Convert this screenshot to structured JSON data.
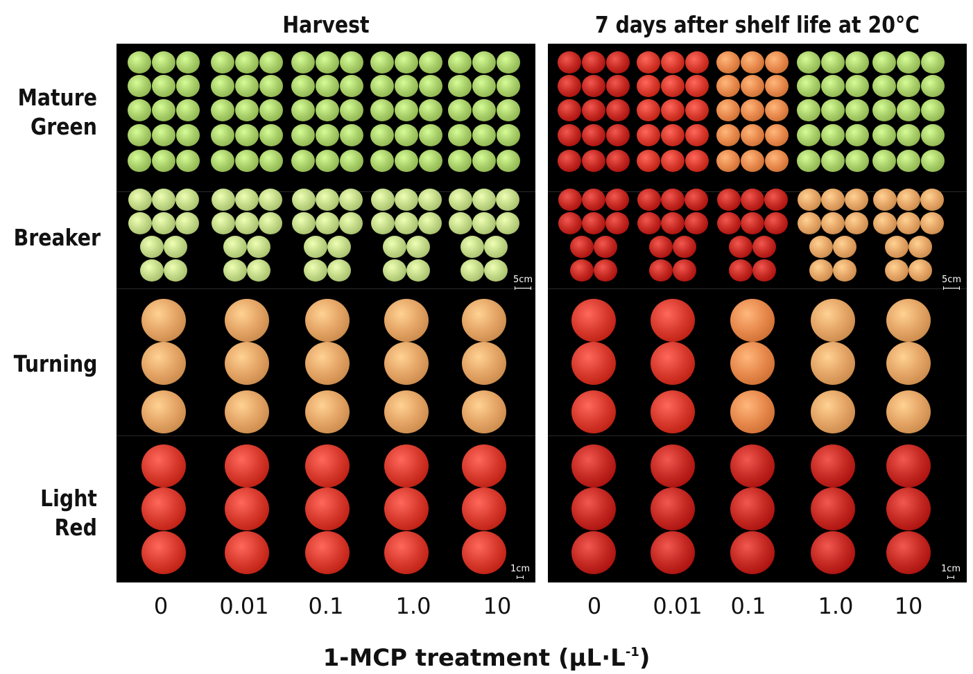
{
  "panels": [
    {
      "title": "Harvest"
    },
    {
      "title": "7 days after shelf life at 20°C"
    }
  ],
  "stages": [
    {
      "lines": [
        "Mature",
        "Green"
      ]
    },
    {
      "lines": [
        "Breaker"
      ]
    },
    {
      "lines": [
        "Turning"
      ]
    },
    {
      "lines": [
        "Light",
        "Red"
      ]
    }
  ],
  "treatments": [
    "0",
    "0.01",
    "0.1",
    "1.0",
    "10"
  ],
  "x_axis": {
    "label": "1-MCP treatment (μL·L",
    "superscript": "-1",
    "close": ")"
  },
  "scale_bars": {
    "breaker": "5cm",
    "light_red": "1cm"
  },
  "colors": {
    "background": "#000000",
    "green": "#a9cf6a",
    "pale_green": "#c2d987",
    "orange_tint": "#e4a566",
    "orange": "#e88a4e",
    "red": "#d83b2e",
    "deep_red": "#c52a23"
  },
  "fruit_colors": {
    "harvest": {
      "mature_green": [
        "green",
        "green",
        "green",
        "green",
        "green"
      ],
      "breaker": [
        "pale_green",
        "pale_green",
        "pale_green",
        "pale_green",
        "pale_green"
      ],
      "turning": [
        "orange_tint",
        "orange_tint",
        "orange_tint",
        "orange_tint",
        "orange_tint"
      ],
      "light_red": [
        "red",
        "red",
        "red",
        "red",
        "red"
      ]
    },
    "shelf": {
      "mature_green": [
        "deep_red",
        "red",
        "orange",
        "green",
        "green"
      ],
      "breaker": [
        "deep_red",
        "deep_red",
        "deep_red",
        "orange_tint",
        "orange_tint"
      ],
      "turning": [
        "red",
        "red",
        "orange",
        "orange_tint",
        "orange_tint"
      ],
      "light_red": [
        "deep_red",
        "deep_red",
        "deep_red",
        "deep_red",
        "deep_red"
      ]
    }
  }
}
